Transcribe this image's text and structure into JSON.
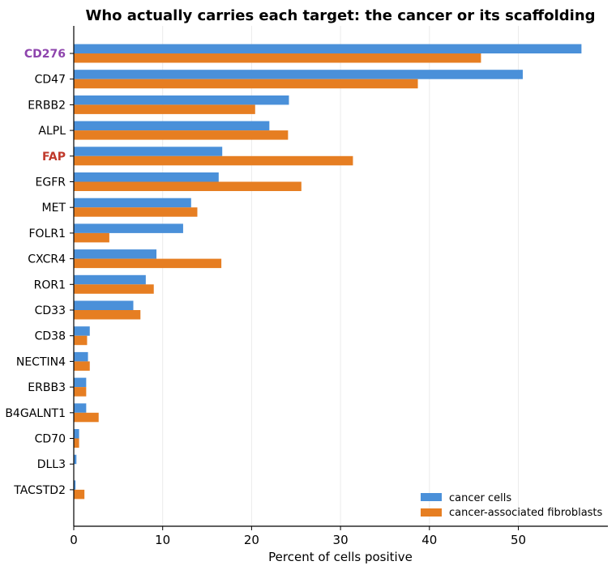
{
  "chart_data": {
    "type": "bar",
    "orientation": "horizontal",
    "title": "Who actually carries each target: the cancer or its scaffolding",
    "xlabel": "Percent of cells positive",
    "ylabel": "",
    "xlim": [
      0,
      60
    ],
    "xticks": [
      0,
      10,
      20,
      30,
      40,
      50
    ],
    "grid": "vertical",
    "legend_position": "lower-right",
    "categories": [
      "CD276",
      "CD47",
      "ERBB2",
      "ALPL",
      "FAP",
      "EGFR",
      "MET",
      "FOLR1",
      "CXCR4",
      "ROR1",
      "CD33",
      "CD38",
      "NECTIN4",
      "ERBB3",
      "B4GALNT1",
      "CD70",
      "DLL3",
      "TACSTD2"
    ],
    "highlighted_categories": [
      {
        "name": "CD276",
        "color": "#8e44ad"
      },
      {
        "name": "FAP",
        "color": "#c0392b"
      }
    ],
    "series": [
      {
        "name": "cancer cells",
        "color": "#4a90d9",
        "values": [
          57.1,
          50.5,
          24.2,
          22.0,
          16.7,
          16.3,
          13.2,
          12.3,
          9.3,
          8.1,
          6.7,
          1.8,
          1.6,
          1.4,
          1.4,
          0.6,
          0.3,
          0.2
        ]
      },
      {
        "name": "cancer-associated fibroblasts",
        "color": "#e67e22",
        "values": [
          45.8,
          38.7,
          20.4,
          24.1,
          31.4,
          25.6,
          13.9,
          4.0,
          16.6,
          9.0,
          7.5,
          1.5,
          1.8,
          1.4,
          2.8,
          0.6,
          0.0,
          1.2
        ]
      }
    ]
  }
}
